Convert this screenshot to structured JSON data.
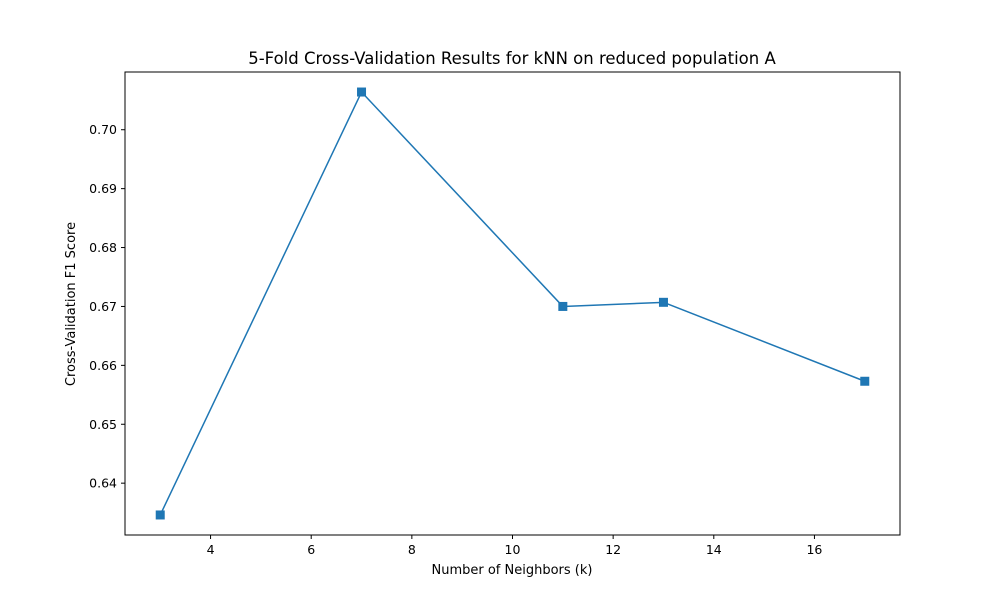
{
  "chart_data": {
    "type": "line",
    "title": "5-Fold Cross-Validation Results for kNN on reduced population A",
    "xlabel": "Number of Neighbors (k)",
    "ylabel": "Cross-Validation F1 Score",
    "xlim": [
      2.3,
      17.7
    ],
    "ylim": [
      0.6312,
      0.7098
    ],
    "xticks": [
      4,
      6,
      8,
      10,
      12,
      14,
      16
    ],
    "xtick_labels": [
      "4",
      "6",
      "8",
      "10",
      "12",
      "14",
      "16"
    ],
    "yticks": [
      0.64,
      0.65,
      0.66,
      0.67,
      0.68,
      0.69,
      0.7
    ],
    "ytick_labels": [
      "0.64",
      "0.65",
      "0.66",
      "0.67",
      "0.68",
      "0.69",
      "0.70"
    ],
    "grid": false,
    "series": [
      {
        "color": "#1f77b4",
        "marker": "square",
        "x": [
          3,
          7,
          11,
          13,
          17
        ],
        "y": [
          0.6346,
          0.7064,
          0.67,
          0.6707,
          0.6573
        ]
      }
    ]
  }
}
